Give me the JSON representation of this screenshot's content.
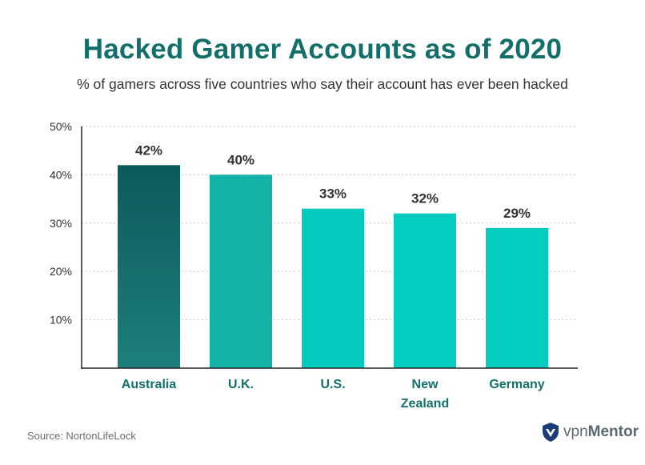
{
  "title": "Hacked Gamer Accounts as of 2020",
  "subtitle": "% of gamers across five countries who say their account has ever been hacked",
  "source": "Source: NortonLifeLock",
  "brand": {
    "prefix": "vpn",
    "name": "Mentor"
  },
  "colors": {
    "title": "#126f6a",
    "highlight_top": "#0c5a5a",
    "highlight_bottom": "#1e7f7a",
    "bars": [
      "#14b2a6",
      "#04cbbd",
      "#04ccbe",
      "#04ccbe"
    ],
    "grid": "#c8c8c8",
    "axis": "#222222",
    "category_label": "#126f6a",
    "value_label": "#333333"
  },
  "chart_data": {
    "type": "bar",
    "categories": [
      "Australia",
      "U.K.",
      "U.S.",
      "New Zealand",
      "Germany"
    ],
    "category_lines": [
      [
        "Australia"
      ],
      [
        "U.K."
      ],
      [
        "U.S."
      ],
      [
        "New",
        "Zealand"
      ],
      [
        "Germany"
      ]
    ],
    "values": [
      42,
      40,
      33,
      32,
      29
    ],
    "value_labels": [
      "42%",
      "40%",
      "33%",
      "32%",
      "29%"
    ],
    "ylim": [
      0,
      50
    ],
    "yticks": [
      10,
      20,
      30,
      40,
      50
    ],
    "ytick_labels": [
      "10%",
      "20%",
      "30%",
      "40%",
      "50%"
    ],
    "grid": true,
    "title": "Hacked Gamer Accounts as of 2020",
    "xlabel": "",
    "ylabel": ""
  }
}
